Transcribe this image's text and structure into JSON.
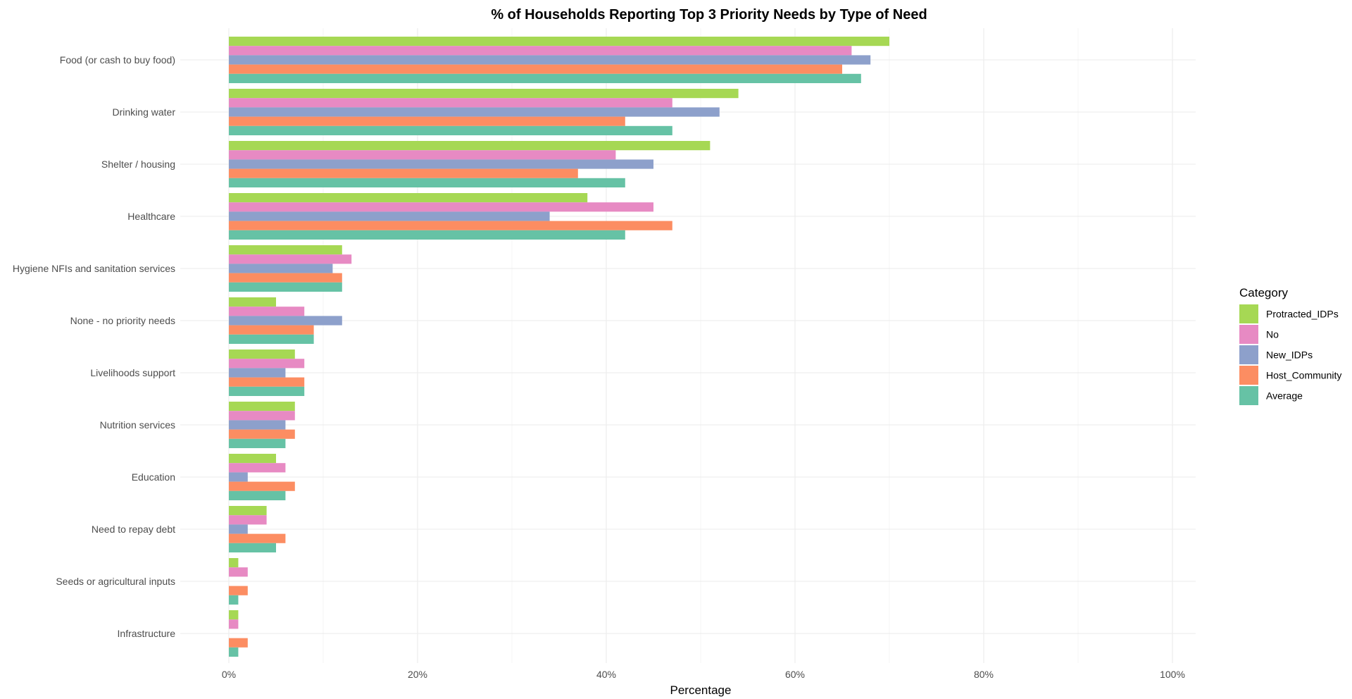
{
  "chart_data": {
    "type": "bar",
    "orientation": "horizontal",
    "title": "% of Households Reporting Top 3 Priority Needs by Type of Need",
    "xlabel": "Percentage",
    "ylabel": "",
    "xlim": [
      0,
      100
    ],
    "x_ticks": [
      0,
      20,
      40,
      60,
      80,
      100
    ],
    "x_tick_labels": [
      "0%",
      "20%",
      "40%",
      "60%",
      "80%",
      "100%"
    ],
    "grid": true,
    "legend_title": "Category",
    "legend_position": "right",
    "categories": [
      "Food (or cash to buy food)",
      "Drinking water",
      "Shelter / housing",
      "Healthcare",
      "Hygiene NFIs and sanitation services",
      "None - no priority needs",
      "Livelihoods support",
      "Nutrition services",
      "Education",
      "Need to repay debt",
      "Seeds or agricultural inputs",
      "Infrastructure"
    ],
    "series": [
      {
        "name": "Protracted_IDPs",
        "color": "#a6d854",
        "values": [
          70,
          54,
          51,
          38,
          12,
          5,
          7,
          7,
          5,
          4,
          1,
          1
        ]
      },
      {
        "name": "No",
        "color": "#e78ac3",
        "values": [
          66,
          47,
          41,
          45,
          13,
          8,
          8,
          7,
          6,
          4,
          2,
          1
        ]
      },
      {
        "name": "New_IDPs",
        "color": "#8da0cb",
        "values": [
          68,
          52,
          45,
          34,
          11,
          12,
          6,
          6,
          2,
          2,
          0,
          0
        ]
      },
      {
        "name": "Host_Community",
        "color": "#fc8d62",
        "values": [
          65,
          42,
          37,
          47,
          12,
          9,
          8,
          7,
          7,
          6,
          2,
          2
        ]
      },
      {
        "name": "Average",
        "color": "#66c2a5",
        "values": [
          67,
          47,
          42,
          42,
          12,
          9,
          8,
          6,
          6,
          5,
          1,
          1
        ]
      }
    ]
  }
}
